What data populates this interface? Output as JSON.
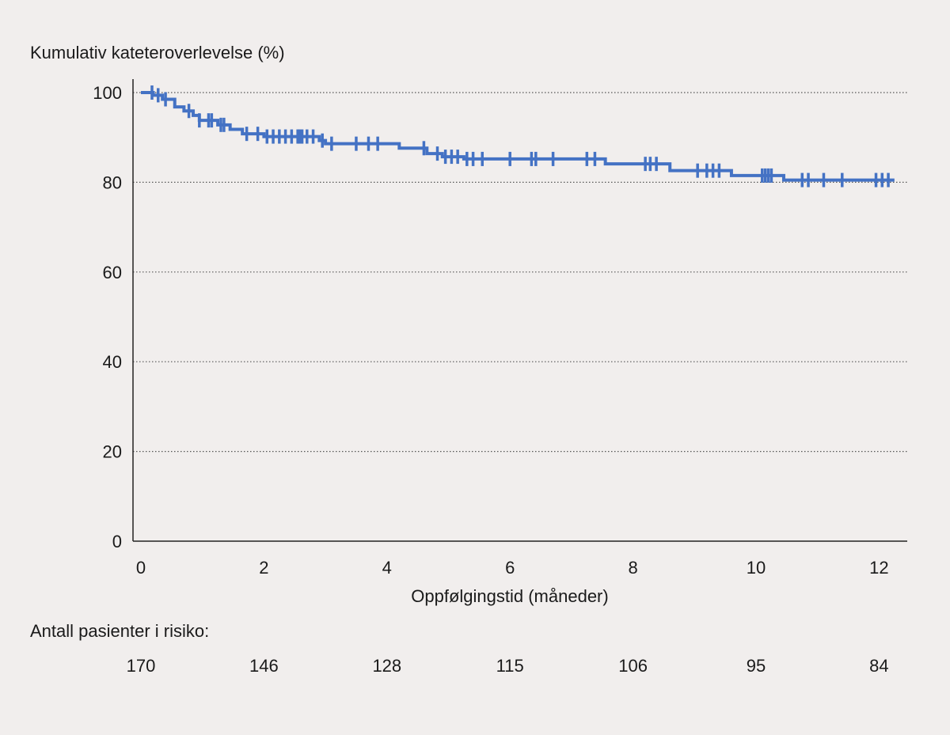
{
  "chart_data": {
    "type": "line",
    "step": true,
    "ylabel": "Kumulativ kateteroverlevelse (%)",
    "xlabel": "Oppfølgingstid (måneder)",
    "xlim": [
      0,
      12.5
    ],
    "ylim": [
      0,
      100
    ],
    "x_ticks": [
      0,
      2,
      4,
      6,
      8,
      10,
      12
    ],
    "y_ticks": [
      0,
      20,
      40,
      60,
      80,
      100
    ],
    "grid": "horizontal-dotted",
    "line_color": "#4472c4",
    "survival_steps": [
      [
        0,
        100
      ],
      [
        0.2,
        99.4
      ],
      [
        0.35,
        98.5
      ],
      [
        0.55,
        96.8
      ],
      [
        0.7,
        95.9
      ],
      [
        0.85,
        94.9
      ],
      [
        0.95,
        93.8
      ],
      [
        1.25,
        92.8
      ],
      [
        1.45,
        91.8
      ],
      [
        1.65,
        90.8
      ],
      [
        2.0,
        90.2
      ],
      [
        2.9,
        89.3
      ],
      [
        3.0,
        88.6
      ],
      [
        4.2,
        87.6
      ],
      [
        4.65,
        86.4
      ],
      [
        4.9,
        85.7
      ],
      [
        5.25,
        85.2
      ],
      [
        7.55,
        84.1
      ],
      [
        8.6,
        82.6
      ],
      [
        9.6,
        81.5
      ],
      [
        10.45,
        80.5
      ],
      [
        12.25,
        80.5
      ]
    ],
    "censor_times": [
      0.18,
      0.28,
      0.4,
      0.78,
      0.95,
      1.1,
      1.15,
      1.3,
      1.35,
      1.72,
      1.9,
      2.05,
      2.15,
      2.25,
      2.35,
      2.45,
      2.55,
      2.58,
      2.62,
      2.7,
      2.8,
      2.95,
      3.1,
      3.5,
      3.7,
      3.85,
      4.6,
      4.82,
      4.95,
      5.05,
      5.15,
      5.3,
      5.4,
      5.55,
      6.0,
      6.35,
      6.42,
      6.7,
      7.25,
      7.38,
      8.2,
      8.28,
      8.38,
      9.05,
      9.2,
      9.3,
      9.4,
      10.1,
      10.15,
      10.2,
      10.25,
      10.75,
      10.85,
      11.1,
      11.4,
      11.95,
      12.05,
      12.15
    ],
    "risk_table_title": "Antall pasienter i risiko:",
    "risk_table": [
      {
        "time": 0,
        "count": "170"
      },
      {
        "time": 2,
        "count": "146"
      },
      {
        "time": 4,
        "count": "128"
      },
      {
        "time": 6,
        "count": "115"
      },
      {
        "time": 8,
        "count": "106"
      },
      {
        "time": 10,
        "count": "95"
      },
      {
        "time": 12,
        "count": "84"
      }
    ]
  }
}
